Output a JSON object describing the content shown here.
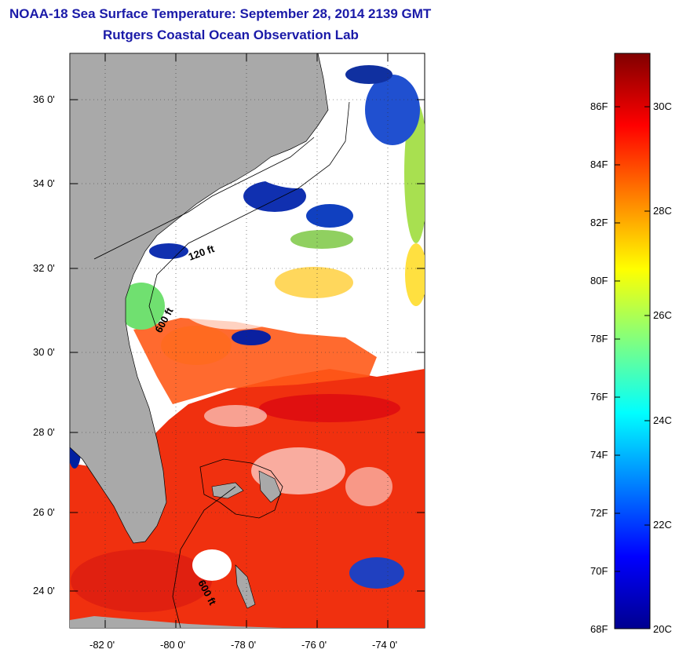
{
  "title": {
    "line1": "NOAA-18 Sea Surface Temperature:  September 28, 2014 2139 GMT",
    "line2": "Rutgers Coastal Ocean Observation Lab"
  },
  "map": {
    "lat_labels": [
      "36 0'",
      "34 0'",
      "32 0'",
      "30 0'",
      "28 0'",
      "26 0'",
      "24 0'"
    ],
    "lon_labels": [
      "-82 0'",
      "-80 0'",
      "-78 0'",
      "-76 0'",
      "-74 0'"
    ],
    "isobath_labels": [
      "120 ft",
      "600 ft",
      "600 ft"
    ],
    "colors": {
      "land": "#a9a9a9",
      "cloud": "#ffffff",
      "coast": "#000000"
    }
  },
  "colorbar": {
    "f_labels": [
      "86F",
      "84F",
      "82F",
      "80F",
      "78F",
      "76F",
      "74F",
      "72F",
      "70F",
      "68F"
    ],
    "c_labels": [
      "30C",
      "28C",
      "26C",
      "24C",
      "22C",
      "20C"
    ],
    "stops": [
      "#00008f",
      "#0000ff",
      "#0080ff",
      "#00ffff",
      "#80ff80",
      "#ffff00",
      "#ff8000",
      "#ff0000",
      "#800000"
    ]
  }
}
